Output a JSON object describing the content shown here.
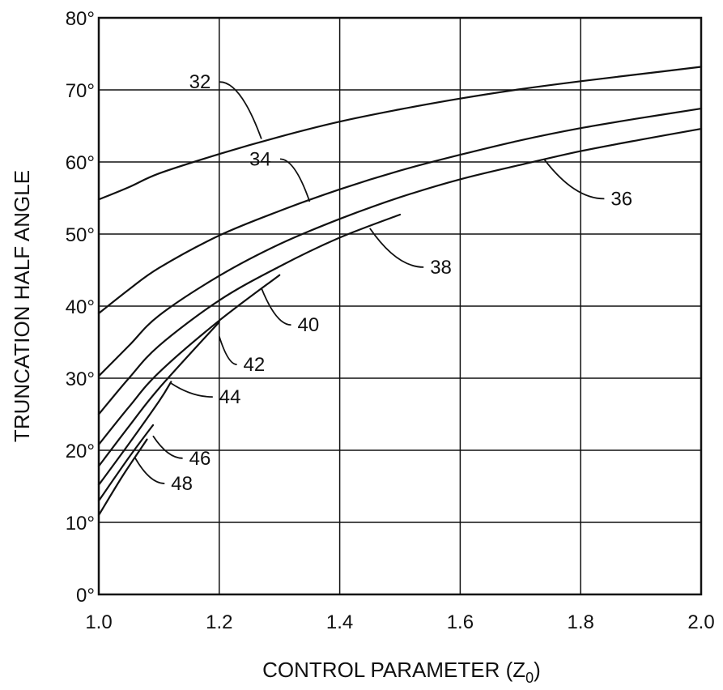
{
  "chart_data": {
    "type": "line",
    "title": "",
    "xlabel": "CONTROL PARAMETER (Z",
    "xlabel_sub": "0",
    "xlabel_end": ")",
    "ylabel": "TRUNCATION HALF ANGLE",
    "xlim": [
      1.0,
      2.0
    ],
    "ylim": [
      0,
      80
    ],
    "grid": true,
    "x_ticks": [
      "1.0",
      "1.2",
      "1.4",
      "1.6",
      "1.8",
      "2.0"
    ],
    "y_ticks": [
      "0°",
      "10°",
      "20°",
      "30°",
      "40°",
      "50°",
      "60°",
      "70°",
      "80°"
    ],
    "series": [
      {
        "name": "32",
        "x": [
          1.0,
          1.05,
          1.1,
          1.2,
          1.3,
          1.4,
          1.5,
          1.6,
          1.7,
          1.8,
          1.9,
          2.0
        ],
        "values": [
          54.8,
          56.5,
          58.4,
          61.1,
          63.5,
          65.6,
          67.3,
          68.8,
          70.1,
          71.2,
          72.2,
          73.2
        ],
        "label_at": [
          1.27,
          63.2
        ],
        "label_pos": [
          1.15,
          70.2
        ]
      },
      {
        "name": "34",
        "x": [
          1.0,
          1.05,
          1.1,
          1.2,
          1.3,
          1.4,
          1.5,
          1.6,
          1.7,
          1.8,
          1.9,
          2.0
        ],
        "values": [
          39.0,
          42.3,
          45.3,
          49.8,
          53.2,
          56.2,
          58.8,
          61.0,
          63.0,
          64.7,
          66.1,
          67.4
        ],
        "label_at": [
          1.35,
          54.5
        ],
        "label_pos": [
          1.25,
          59.5
        ]
      },
      {
        "name": "36",
        "x": [
          1.0,
          1.05,
          1.1,
          1.2,
          1.3,
          1.4,
          1.5,
          1.6,
          1.7,
          1.8,
          1.9,
          2.0
        ],
        "values": [
          30.3,
          34.5,
          38.7,
          44.2,
          48.6,
          52.1,
          55.1,
          57.6,
          59.6,
          61.5,
          63.1,
          64.6
        ],
        "label_at": [
          1.74,
          60.3
        ],
        "label_pos": [
          1.85,
          54.0
        ]
      },
      {
        "name": "38",
        "x": [
          1.0,
          1.05,
          1.1,
          1.2,
          1.3,
          1.4,
          1.5
        ],
        "values": [
          25.0,
          30.0,
          34.5,
          40.8,
          45.5,
          49.5,
          52.7
        ],
        "label_at": [
          1.45,
          50.8
        ],
        "label_pos": [
          1.55,
          44.5
        ]
      },
      {
        "name": "40",
        "x": [
          1.0,
          1.05,
          1.1,
          1.2,
          1.3
        ],
        "values": [
          20.8,
          26.0,
          30.8,
          38.0,
          44.3
        ],
        "label_at": [
          1.27,
          42.5
        ],
        "label_pos": [
          1.33,
          36.5
        ]
      },
      {
        "name": "42",
        "x": [
          1.0,
          1.05,
          1.1,
          1.2
        ],
        "values": [
          17.8,
          23.3,
          28.6,
          37.8
        ],
        "label_at": [
          1.2,
          35.8
        ],
        "label_pos": [
          1.24,
          31.0
        ]
      },
      {
        "name": "44",
        "x": [
          1.0,
          1.05,
          1.1,
          1.12
        ],
        "values": [
          15.2,
          20.9,
          26.8,
          29.5
        ],
        "label_at": [
          1.12,
          29.3
        ],
        "label_pos": [
          1.2,
          26.5
        ]
      },
      {
        "name": "46",
        "x": [
          1.0,
          1.05,
          1.09
        ],
        "values": [
          13.0,
          19.0,
          23.5
        ],
        "label_at": [
          1.09,
          22.0
        ],
        "label_pos": [
          1.15,
          18.0
        ]
      },
      {
        "name": "48",
        "x": [
          1.0,
          1.04,
          1.08
        ],
        "values": [
          11.0,
          16.5,
          21.5
        ],
        "label_at": [
          1.06,
          19.0
        ],
        "label_pos": [
          1.12,
          14.5
        ]
      }
    ]
  }
}
